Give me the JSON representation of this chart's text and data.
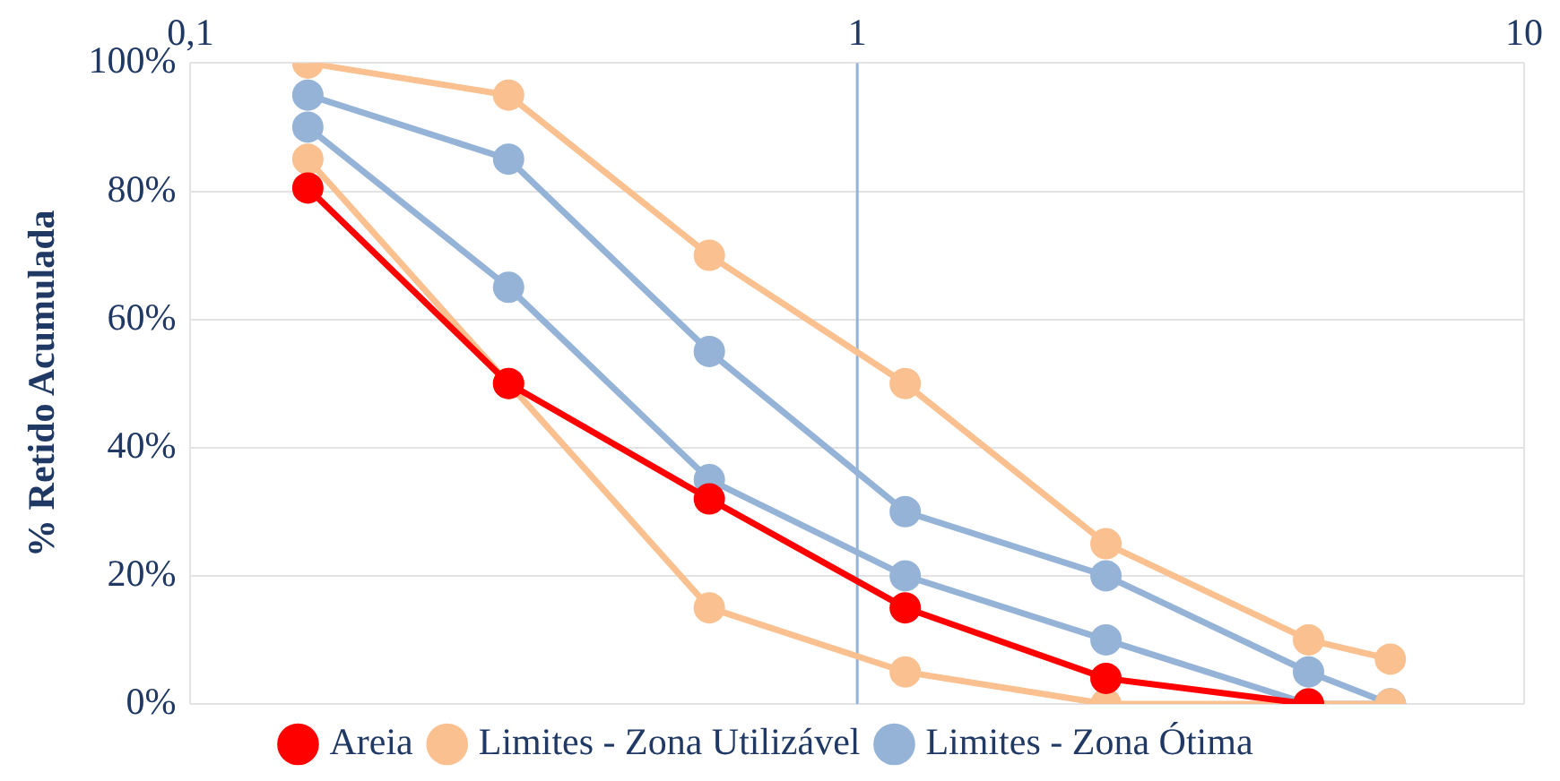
{
  "chart_data": {
    "type": "line",
    "ylabel": "% Retido Acumulada",
    "x": [
      0.15,
      0.3,
      0.6,
      1.18,
      2.36,
      4.75,
      6.3
    ],
    "series": [
      {
        "name": "Areia",
        "color": "#ff0000",
        "values": [
          80.5,
          50,
          32,
          15,
          4,
          0,
          null
        ]
      },
      {
        "name": "Limites - Zona Utilizável",
        "color": "#fac08f",
        "values": [
          100,
          95,
          70,
          50,
          25,
          10,
          7
        ]
      },
      {
        "color": "#fac08f",
        "values": [
          85,
          50,
          15,
          5,
          0,
          0,
          0
        ]
      },
      {
        "name": "Limites - Zona Ótima",
        "color": "#95b3d7",
        "values": [
          95,
          85,
          55,
          30,
          20,
          5,
          0
        ]
      },
      {
        "color": "#95b3d7",
        "values": [
          90,
          65,
          35,
          20,
          10,
          0,
          0
        ]
      }
    ],
    "log": "x",
    "xlim": [
      0.1,
      10
    ],
    "xticks": [
      {
        "value": 0.1,
        "label": "0,1"
      },
      1,
      10
    ],
    "ylim": [
      0,
      100
    ],
    "yticks": [
      {
        "value": 0,
        "label": "0%"
      },
      {
        "value": 20,
        "label": "20%"
      },
      {
        "value": 40,
        "label": "40%"
      },
      {
        "value": 60,
        "label": "60%"
      },
      {
        "value": 80,
        "label": "80%"
      },
      {
        "value": 100,
        "label": "100%"
      }
    ],
    "grid": true,
    "ref_lines": [
      {
        "axis": "x",
        "value": 1,
        "color": "#95b3d7"
      }
    ],
    "legend": "bottom",
    "marker": "circle",
    "line_style": "solid"
  }
}
